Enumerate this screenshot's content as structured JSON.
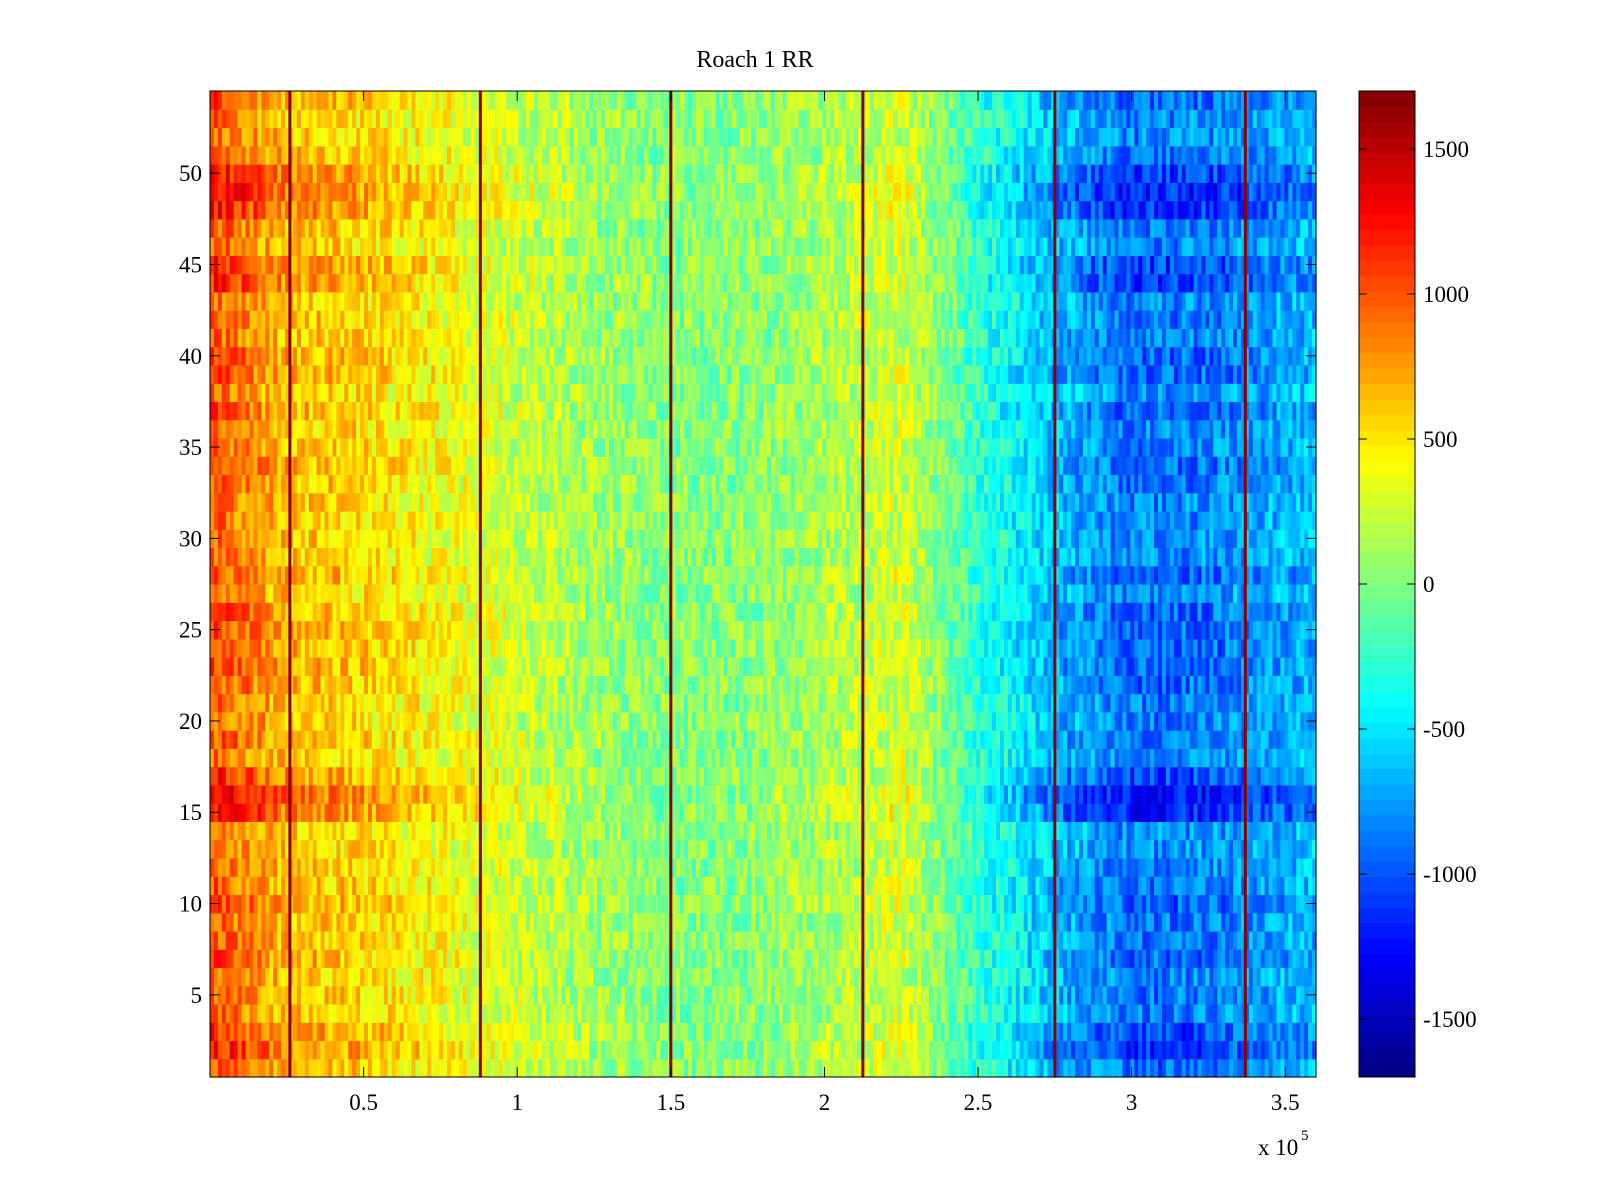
{
  "chart_data": {
    "type": "heatmap",
    "title": "Roach 1 RR",
    "xlabel": "",
    "ylabel": "",
    "x_multiplier": {
      "base": "x 10",
      "exponent": "5"
    },
    "xlim": [
      0,
      360000
    ],
    "ylim": [
      0.5,
      54.5
    ],
    "x_ticks": [
      {
        "value": 50000,
        "label": "0.5"
      },
      {
        "value": 100000,
        "label": "1"
      },
      {
        "value": 150000,
        "label": "1.5"
      },
      {
        "value": 200000,
        "label": "2"
      },
      {
        "value": 250000,
        "label": "2.5"
      },
      {
        "value": 300000,
        "label": "3"
      },
      {
        "value": 350000,
        "label": "3.5"
      }
    ],
    "y_ticks": [
      {
        "value": 5,
        "label": "5"
      },
      {
        "value": 10,
        "label": "10"
      },
      {
        "value": 15,
        "label": "15"
      },
      {
        "value": 20,
        "label": "20"
      },
      {
        "value": 25,
        "label": "25"
      },
      {
        "value": 30,
        "label": "30"
      },
      {
        "value": 35,
        "label": "35"
      },
      {
        "value": 40,
        "label": "40"
      },
      {
        "value": 45,
        "label": "45"
      },
      {
        "value": 50,
        "label": "50"
      }
    ],
    "rows": 54,
    "colorbar": {
      "colormap": "jet",
      "range": [
        -1700,
        1700
      ],
      "ticks": [
        {
          "value": 1500,
          "label": "1500"
        },
        {
          "value": 1000,
          "label": "1000"
        },
        {
          "value": 500,
          "label": "500"
        },
        {
          "value": 0,
          "label": "0"
        },
        {
          "value": -500,
          "label": "-500"
        },
        {
          "value": -1000,
          "label": "-1000"
        },
        {
          "value": -1500,
          "label": "-1500"
        }
      ]
    },
    "column_trend": {
      "x": [
        0,
        25000,
        50000,
        75000,
        100000,
        125000,
        150000,
        175000,
        200000,
        225000,
        250000,
        275000,
        300000,
        325000,
        350000,
        360000
      ],
      "values": [
        1000,
        650,
        550,
        400,
        250,
        100,
        20,
        20,
        120,
        280,
        -250,
        -650,
        -900,
        -850,
        -700,
        -650
      ]
    },
    "strong_rows": [
      {
        "row": 16,
        "factor": 1.45
      },
      {
        "row": 15,
        "factor": 1.35
      },
      {
        "row": 17,
        "factor": 1.2
      },
      {
        "row": 49,
        "factor": 1.35
      },
      {
        "row": 48,
        "factor": 1.3
      },
      {
        "row": 50,
        "factor": 1.25
      },
      {
        "row": 45,
        "factor": 1.2
      },
      {
        "row": 44,
        "factor": 1.2
      },
      {
        "row": 2,
        "factor": 1.25
      },
      {
        "row": 3,
        "factor": 1.2
      }
    ],
    "vertical_lines": {
      "x": [
        26000,
        88000,
        150000,
        212500,
        275000,
        337000
      ],
      "value": 1650
    }
  }
}
